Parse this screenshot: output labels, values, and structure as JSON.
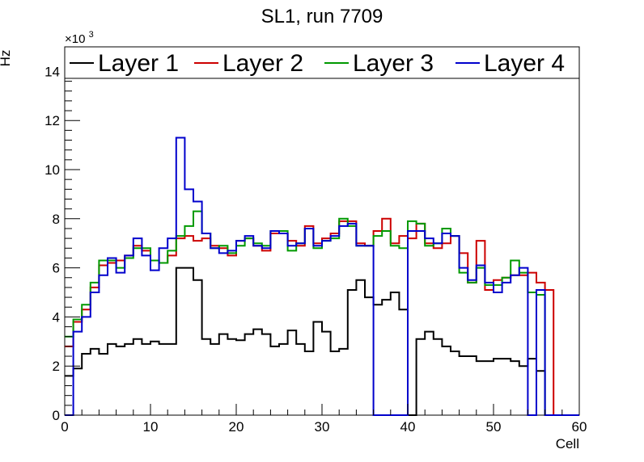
{
  "chart_data": {
    "type": "histogram-step",
    "title": "SL1, run 7709",
    "xlabel": "Cell",
    "ylabel": "Hz",
    "y_multiplier_base": "×10",
    "y_multiplier_exp": "3",
    "xlim": [
      0,
      60
    ],
    "ylim": [
      0,
      15000
    ],
    "x_ticks": [
      0,
      10,
      20,
      30,
      40,
      50,
      60
    ],
    "y_ticks": [
      0,
      2,
      4,
      6,
      8,
      10,
      12,
      14
    ],
    "bin_width": 1,
    "legend_position": "top",
    "series": [
      {
        "name": "Layer 1",
        "color": "#000000",
        "values": [
          1600,
          1900,
          2500,
          2700,
          2500,
          2900,
          2800,
          2900,
          3100,
          2900,
          3000,
          2900,
          2900,
          6000,
          6000,
          5500,
          3100,
          2900,
          3300,
          3100,
          3050,
          3300,
          3500,
          3300,
          2800,
          2900,
          3450,
          2900,
          2600,
          3800,
          3400,
          2600,
          2700,
          5100,
          5500,
          4800,
          4500,
          4700,
          5000,
          4300,
          0,
          3100,
          3400,
          3100,
          2800,
          2600,
          2400,
          2400,
          2200,
          2200,
          2300,
          2300,
          2200,
          2000,
          2300,
          1800,
          0,
          0,
          0,
          0
        ]
      },
      {
        "name": "Layer 2",
        "color": "#cc0000",
        "values": [
          2800,
          3800,
          4300,
          5200,
          6100,
          6200,
          6300,
          6500,
          6900,
          6700,
          6300,
          6200,
          6500,
          7200,
          7300,
          7100,
          7200,
          6900,
          6800,
          6500,
          7100,
          7200,
          6900,
          6700,
          7400,
          7400,
          7100,
          6900,
          7700,
          7000,
          7200,
          7400,
          7900,
          7900,
          7000,
          6900,
          7500,
          8000,
          7000,
          7300,
          7200,
          7800,
          7000,
          6800,
          7000,
          7300,
          6600,
          5400,
          7100,
          5100,
          5500,
          5600,
          5700,
          5700,
          5800,
          5400,
          5100,
          0,
          0,
          0
        ]
      },
      {
        "name": "Layer 3",
        "color": "#009900",
        "values": [
          3200,
          3900,
          4500,
          5400,
          6300,
          6300,
          6000,
          6400,
          6800,
          6800,
          6300,
          6200,
          6700,
          7300,
          7700,
          8300,
          7400,
          6800,
          6900,
          6600,
          6900,
          7200,
          7000,
          6900,
          7500,
          7500,
          6700,
          7000,
          7600,
          6800,
          7100,
          7200,
          8000,
          7700,
          6900,
          6900,
          7300,
          7500,
          6900,
          6800,
          7900,
          7800,
          6900,
          7000,
          7600,
          7300,
          5800,
          5400,
          6000,
          5300,
          5300,
          5600,
          6300,
          5800,
          5000,
          4900,
          0,
          0,
          0,
          0
        ]
      },
      {
        "name": "Layer 4",
        "color": "#0000cc",
        "values": [
          0,
          3400,
          4000,
          5000,
          5700,
          6400,
          5800,
          6500,
          7200,
          6500,
          5900,
          6800,
          7200,
          11300,
          9200,
          8700,
          7400,
          6800,
          6600,
          6700,
          7100,
          7300,
          6900,
          6800,
          7500,
          7400,
          6900,
          7000,
          7600,
          6900,
          7100,
          7300,
          7700,
          7800,
          6900,
          6900,
          0,
          0,
          0,
          0,
          7500,
          7500,
          7200,
          7000,
          7400,
          7300,
          6000,
          5500,
          6100,
          5400,
          5000,
          5400,
          5700,
          6000,
          0,
          5100,
          0,
          0,
          0,
          0
        ]
      }
    ]
  }
}
